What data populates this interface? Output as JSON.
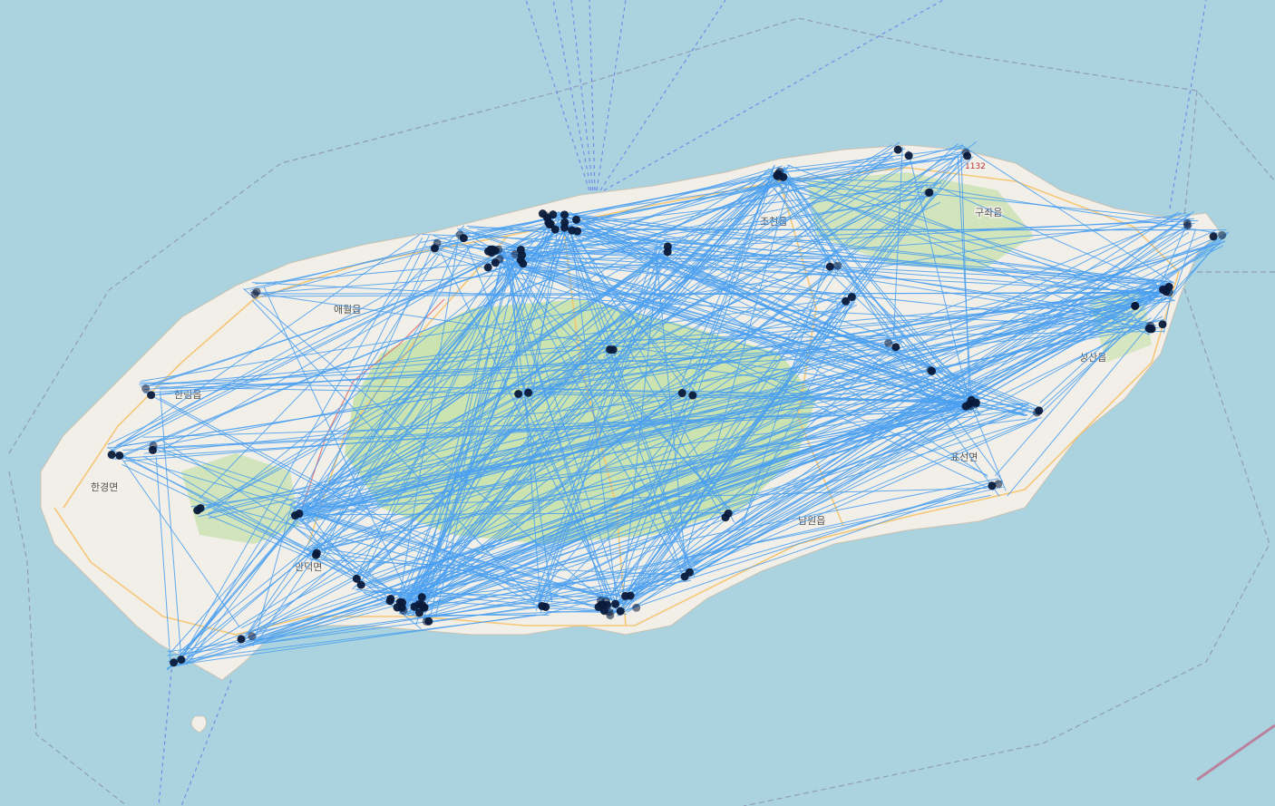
{
  "map": {
    "colors": {
      "sea": "#aad3df",
      "land": "#f2efe9",
      "forest": "#c3e0a6",
      "road": "#f6c36a",
      "boundary": "#8a8fb0",
      "route": "#4a9ff0",
      "ferry": "#6b7fe8",
      "node": "#0a1a3a"
    },
    "labels": [
      {
        "id": "hangyeong",
        "text": "한경면"
      },
      {
        "id": "hallim",
        "text": "한림읍"
      },
      {
        "id": "aewol",
        "text": "애월읍"
      },
      {
        "id": "jocheon",
        "text": "조천읍"
      },
      {
        "id": "gujwa",
        "text": "구좌읍"
      },
      {
        "id": "seongsan",
        "text": "성산읍"
      },
      {
        "id": "pyoseon",
        "text": "표선면"
      },
      {
        "id": "namwon",
        "text": "남원읍"
      },
      {
        "id": "andeok",
        "text": "안덕면"
      },
      {
        "id": "road1132",
        "text": "1132"
      }
    ]
  }
}
